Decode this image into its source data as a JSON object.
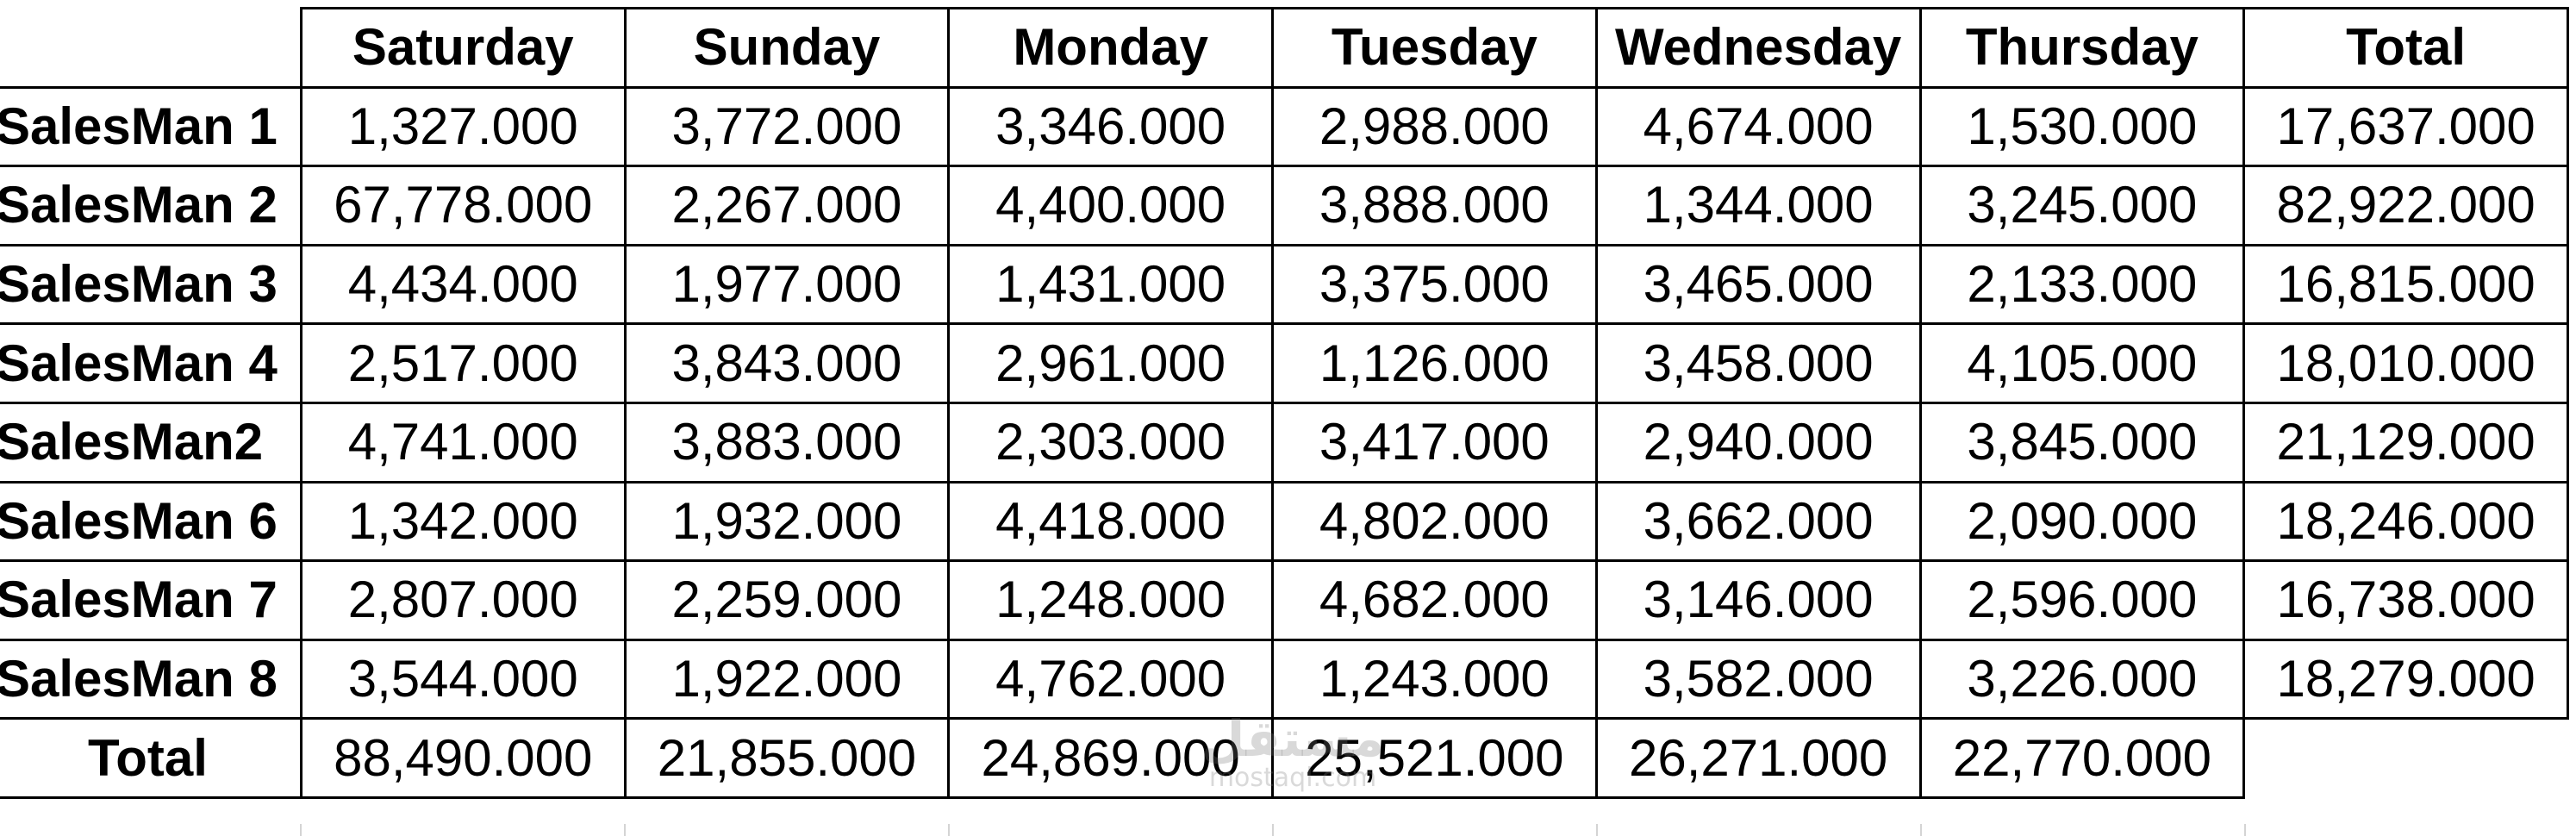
{
  "table": {
    "headers": [
      "",
      "Saturday",
      "Sunday",
      "Monday",
      "Tuesday",
      "Wednesday",
      "Thursday",
      "Total"
    ],
    "rows": [
      {
        "label": "SalesMan 1",
        "values": [
          "1,327.000",
          "3,772.000",
          "3,346.000",
          "2,988.000",
          "4,674.000",
          "1,530.000",
          "17,637.000"
        ]
      },
      {
        "label": "SalesMan 2",
        "values": [
          "67,778.000",
          "2,267.000",
          "4,400.000",
          "3,888.000",
          "1,344.000",
          "3,245.000",
          "82,922.000"
        ]
      },
      {
        "label": "SalesMan 3",
        "values": [
          "4,434.000",
          "1,977.000",
          "1,431.000",
          "3,375.000",
          "3,465.000",
          "2,133.000",
          "16,815.000"
        ]
      },
      {
        "label": "SalesMan 4",
        "values": [
          "2,517.000",
          "3,843.000",
          "2,961.000",
          "1,126.000",
          "3,458.000",
          "4,105.000",
          "18,010.000"
        ]
      },
      {
        "label": "SalesMan2",
        "values": [
          "4,741.000",
          "3,883.000",
          "2,303.000",
          "3,417.000",
          "2,940.000",
          "3,845.000",
          "21,129.000"
        ]
      },
      {
        "label": "SalesMan 6",
        "values": [
          "1,342.000",
          "1,932.000",
          "4,418.000",
          "4,802.000",
          "3,662.000",
          "2,090.000",
          "18,246.000"
        ]
      },
      {
        "label": "SalesMan 7",
        "values": [
          "2,807.000",
          "2,259.000",
          "1,248.000",
          "4,682.000",
          "3,146.000",
          "2,596.000",
          "16,738.000"
        ]
      },
      {
        "label": "SalesMan 8",
        "values": [
          "3,544.000",
          "1,922.000",
          "4,762.000",
          "1,243.000",
          "3,582.000",
          "3,226.000",
          "18,279.000"
        ]
      }
    ],
    "total_row": {
      "label": "Total",
      "values": [
        "88,490.000",
        "21,855.000",
        "24,869.000",
        "25,521.000",
        "26,271.000",
        "22,770.000",
        ""
      ]
    }
  },
  "watermark": {
    "logo_text": "مستقل",
    "site_text": "mostaql.com"
  },
  "colors": {
    "border": "#000000",
    "text": "#000000",
    "faint_grid": "#d4d4d4"
  }
}
